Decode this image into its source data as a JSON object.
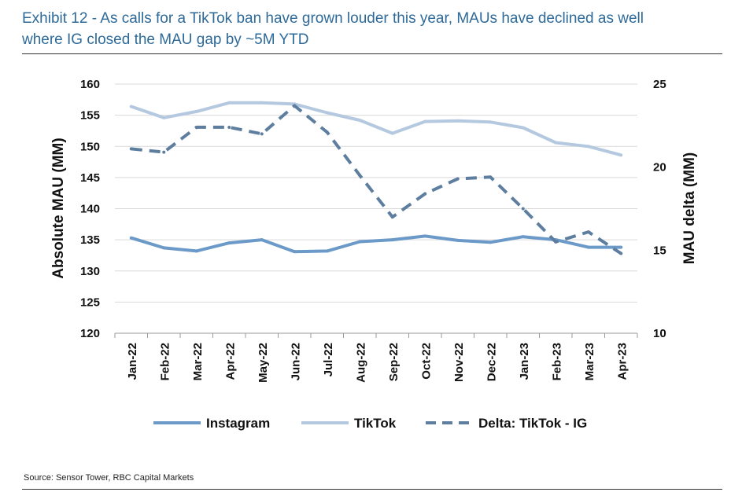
{
  "header": {
    "title_line1": "Exhibit 12 - As calls for a TikTok ban have grown louder this year, MAUs have declined as well",
    "title_line2": "where IG closed the MAU gap by ~5M YTD"
  },
  "footer": {
    "source": "Source: Sensor Tower, RBC Capital Markets"
  },
  "colors": {
    "instagram": "#6b9ac9",
    "tiktok": "#b4c9e0",
    "delta": "#5e7ea0",
    "grid": "#d9d9d9"
  },
  "chart_data": {
    "type": "line",
    "categories": [
      "Jan-22",
      "Feb-22",
      "Mar-22",
      "Apr-22",
      "May-22",
      "Jun-22",
      "Jul-22",
      "Aug-22",
      "Sep-22",
      "Oct-22",
      "Nov-22",
      "Dec-22",
      "Jan-23",
      "Feb-23",
      "Mar-23",
      "Apr-23"
    ],
    "ylabel": "Absolute MAU (MM)",
    "y2label": "MAU delta (MM)",
    "ylim": [
      120,
      160
    ],
    "yticks": [
      "120",
      "125",
      "130",
      "135",
      "140",
      "145",
      "150",
      "155",
      "160"
    ],
    "y2lim": [
      10,
      25
    ],
    "y2ticks": [
      "10",
      "15",
      "20",
      "25"
    ],
    "grid": true,
    "legend_position": "bottom",
    "series": [
      {
        "name": "Instagram",
        "axis": "left",
        "style": "solid",
        "values": [
          135.3,
          133.7,
          133.2,
          134.5,
          135.0,
          133.1,
          133.2,
          134.7,
          135.0,
          135.6,
          134.9,
          134.6,
          135.5,
          135.0,
          133.8,
          133.8
        ]
      },
      {
        "name": "TikTok",
        "axis": "left",
        "style": "solid",
        "values": [
          156.4,
          154.6,
          155.6,
          157.0,
          157.0,
          156.8,
          155.4,
          154.2,
          152.1,
          154.0,
          154.1,
          153.9,
          153.0,
          150.6,
          150.0,
          148.6
        ]
      },
      {
        "name": "Delta: TikTok - IG",
        "axis": "right",
        "style": "dashed",
        "values": [
          21.1,
          20.9,
          22.4,
          22.4,
          22.0,
          23.7,
          22.1,
          19.5,
          17.0,
          18.4,
          19.3,
          19.4,
          17.5,
          15.5,
          16.1,
          14.8
        ]
      }
    ]
  }
}
